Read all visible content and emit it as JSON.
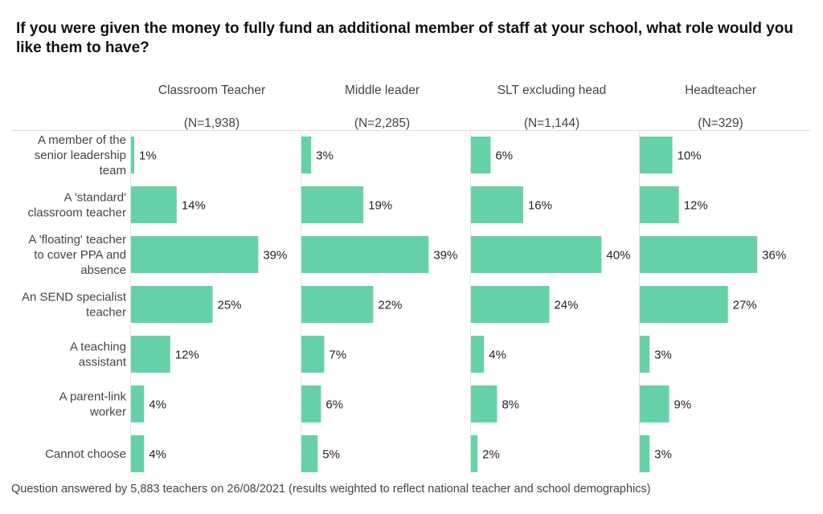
{
  "chart_data": {
    "type": "bar",
    "orientation": "horizontal",
    "title": "If you were given the money to fully fund an additional member of staff at your school, what role would you like them to have?",
    "categories": [
      "A member of the senior leadership team",
      "A 'standard' classroom teacher",
      "A 'floating' teacher to cover PPA and absence",
      "An SEND specialist teacher",
      "A teaching assistant",
      "A parent-link worker",
      "Cannot choose"
    ],
    "category_lines": [
      [
        "A member of the",
        "senior leadership",
        "team"
      ],
      [
        "A 'standard'",
        "classroom teacher"
      ],
      [
        "A 'floating' teacher",
        "to cover PPA and",
        "absence"
      ],
      [
        "An SEND specialist",
        "teacher"
      ],
      [
        "A teaching",
        "assistant"
      ],
      [
        "A parent-link",
        "worker"
      ],
      [
        "Cannot choose"
      ]
    ],
    "panels": [
      {
        "name": "Classroom Teacher",
        "n_label": "(N=1,938)",
        "values": [
          1,
          14,
          39,
          25,
          12,
          4,
          4
        ]
      },
      {
        "name": "Middle leader",
        "n_label": "(N=2,285)",
        "values": [
          3,
          19,
          39,
          22,
          7,
          6,
          5
        ]
      },
      {
        "name": "SLT excluding head",
        "n_label": "(N=1,144)",
        "values": [
          6,
          16,
          40,
          24,
          4,
          8,
          2
        ]
      },
      {
        "name": "Headteacher",
        "n_label": "(N=329)",
        "values": [
          10,
          12,
          36,
          27,
          3,
          9,
          3
        ]
      }
    ],
    "value_suffix": "%",
    "xlim": [
      0,
      50
    ],
    "bar_color": "#66d1a7",
    "grid": false,
    "legend": "none"
  },
  "footer": "Question answered by 5,883 teachers on 26/08/2021 (results weighted to reflect national teacher and school demographics)"
}
